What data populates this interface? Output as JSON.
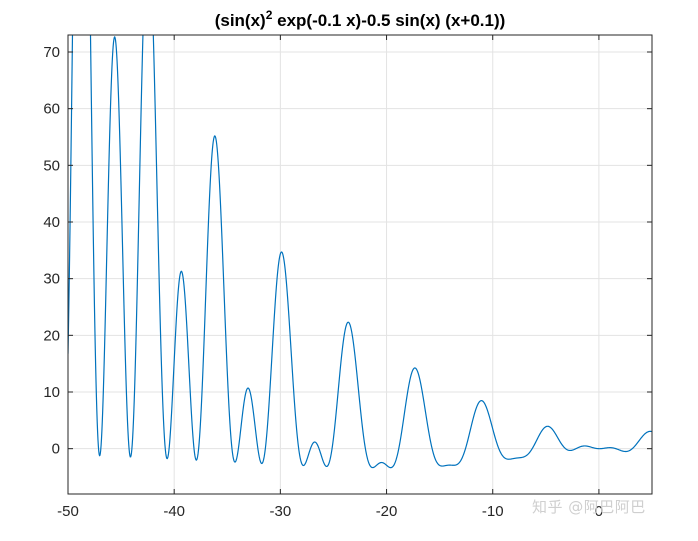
{
  "chart_data": {
    "type": "line",
    "title": "(sin(x)² exp(-0.1 x)-0.5 sin(x) (x+0.1))",
    "title_parts": {
      "before_sup": "(sin(x)",
      "sup": "2",
      "after_sup": " exp(-0.1 x)-0.5 sin(x) (x+0.1))"
    },
    "function": "sin(x)^2*exp(-0.1*x) - 0.5*sin(x)*(x+0.1)",
    "xlabel": "",
    "ylabel": "",
    "xlim": [
      -50,
      5
    ],
    "ylim": [
      -8,
      73
    ],
    "x_ticks": [
      -50,
      -40,
      -30,
      -20,
      -10,
      0
    ],
    "x_tick_labels": [
      "-50",
      "-40",
      "-30",
      "-20",
      "-10",
      "0"
    ],
    "y_ticks": [
      0,
      10,
      20,
      30,
      40,
      50,
      60,
      70
    ],
    "y_tick_labels": [
      "0",
      "10",
      "20",
      "30",
      "40",
      "50",
      "60",
      "70"
    ],
    "grid": true,
    "series_color": "#0072BD",
    "x_range": [
      -50,
      5
    ],
    "samples": 1500
  },
  "watermark": "知乎 @阿巴阿巴"
}
